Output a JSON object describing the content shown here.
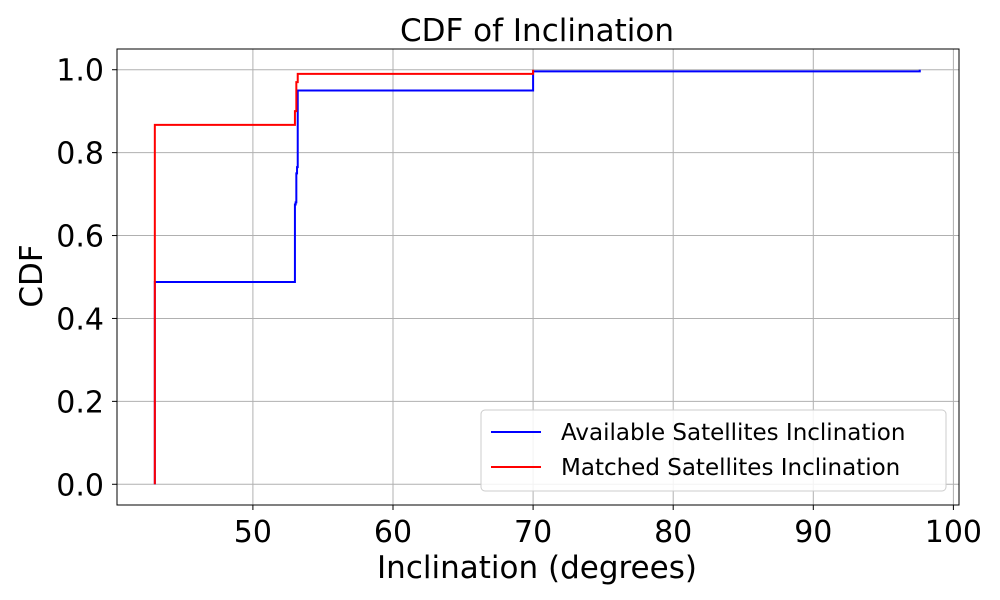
{
  "chart_data": {
    "type": "line",
    "title": "CDF of Inclination",
    "xlabel": "Inclination (degrees)",
    "ylabel": "CDF",
    "xlim": [
      40.3,
      100.4
    ],
    "ylim": [
      -0.05,
      1.05
    ],
    "xticks": [
      50,
      60,
      70,
      80,
      90,
      100
    ],
    "yticks": [
      0.0,
      0.2,
      0.4,
      0.6,
      0.8,
      1.0
    ],
    "xtick_labels": [
      "50",
      "60",
      "70",
      "80",
      "90",
      "100"
    ],
    "ytick_labels": [
      "0.0",
      "0.2",
      "0.4",
      "0.6",
      "0.8",
      "1.0"
    ],
    "grid": true,
    "legend_position": "lower-right",
    "series": [
      {
        "name": "Available Satellites Inclination",
        "color": "#0000ff",
        "step": true,
        "x": [
          43.0,
          43.0,
          53.0,
          53.0,
          53.05,
          53.05,
          53.1,
          53.1,
          53.15,
          53.15,
          53.2,
          53.2,
          70.0,
          70.0,
          97.6,
          97.6
        ],
        "y": [
          0.0,
          0.488,
          0.488,
          0.675,
          0.675,
          0.68,
          0.68,
          0.75,
          0.75,
          0.765,
          0.765,
          0.95,
          0.95,
          0.996,
          0.996,
          1.0
        ]
      },
      {
        "name": "Matched Satellites Inclination",
        "color": "#ff0000",
        "step": true,
        "x": [
          43.0,
          43.0,
          53.0,
          53.0,
          53.1,
          53.1,
          53.2,
          53.2,
          70.0,
          70.0
        ],
        "y": [
          0.0,
          0.867,
          0.867,
          0.9,
          0.9,
          0.97,
          0.97,
          0.99,
          0.99,
          1.0
        ]
      }
    ]
  }
}
